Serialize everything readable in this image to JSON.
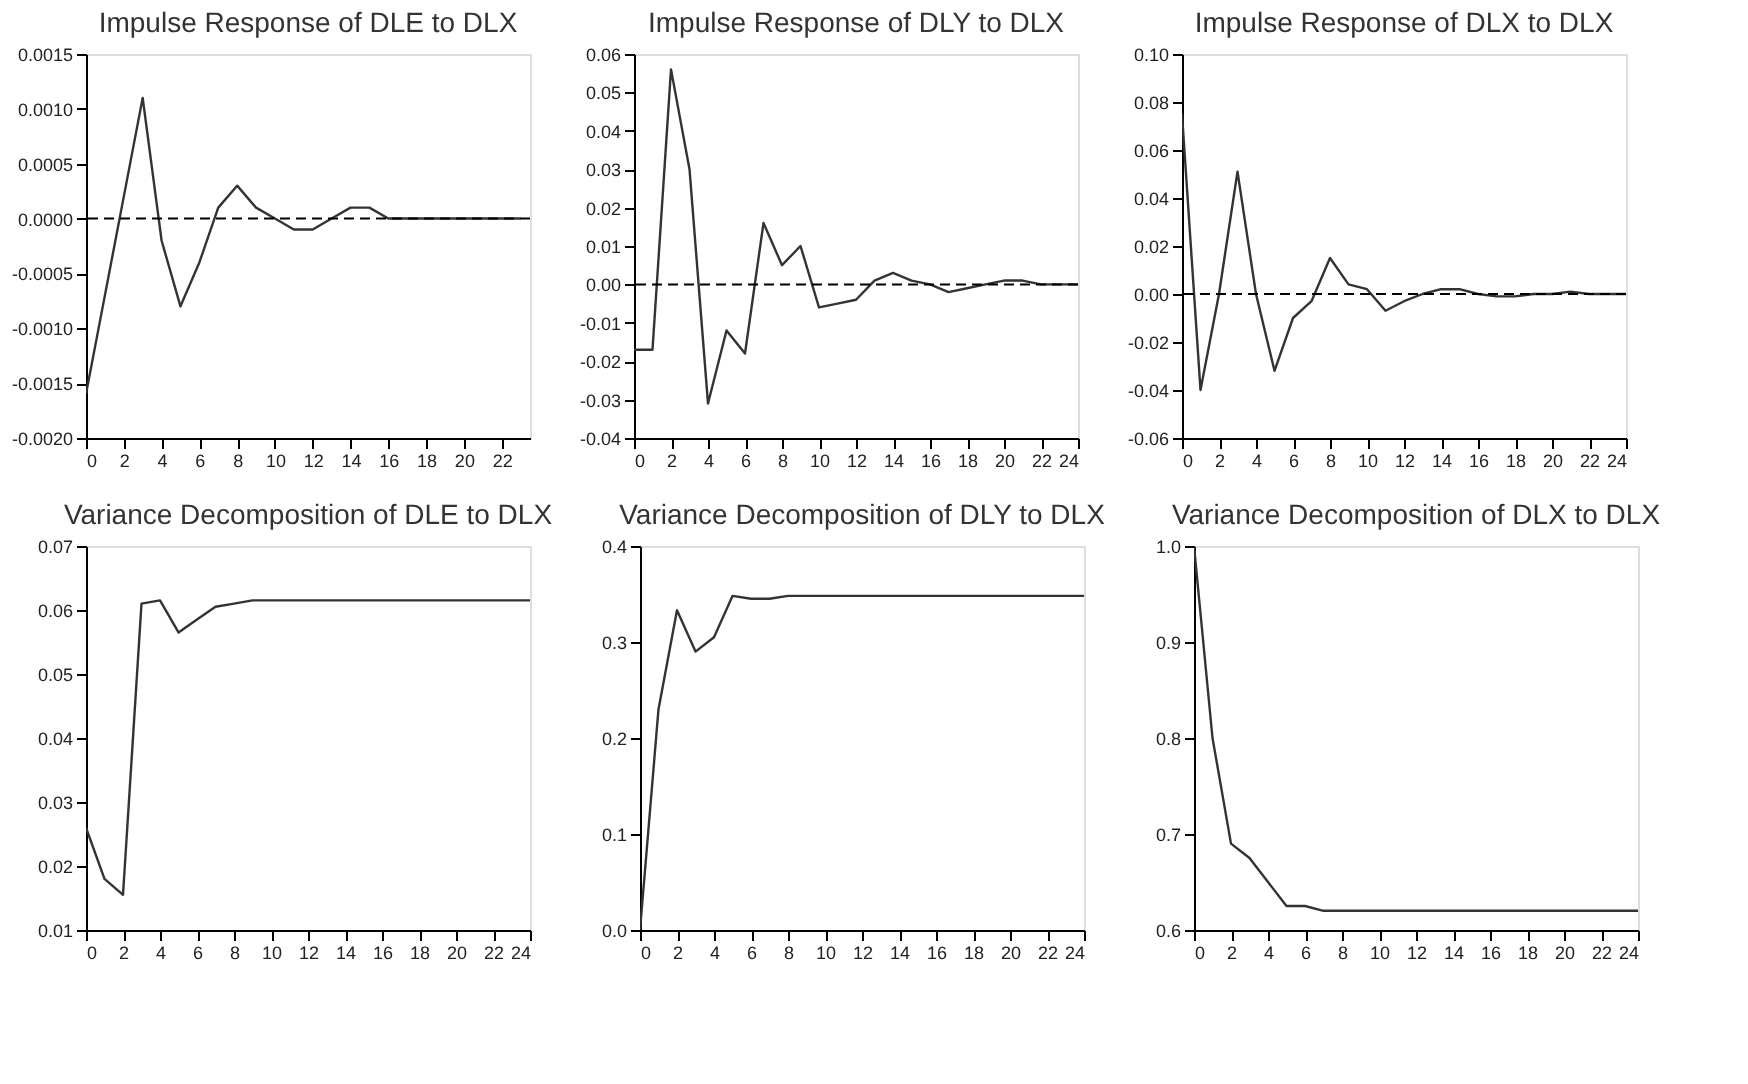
{
  "chart_data": [
    {
      "type": "line",
      "title": "Impulse Response of DLE to DLX",
      "x": [
        0,
        1,
        2,
        3,
        4,
        5,
        6,
        7,
        8,
        9,
        10,
        11,
        12,
        13,
        14,
        15,
        16,
        17,
        18,
        19,
        20,
        21,
        22,
        23
      ],
      "series": [
        {
          "color": "#333333",
          "values": [
            -0.0016,
            -0.0007,
            0.0002,
            0.0011,
            -0.0002,
            -0.0008,
            -0.0004,
            0.0001,
            0.0003,
            0.0001,
            0.0,
            -0.0001,
            -0.0001,
            0.0,
            0.0001,
            0.0001,
            0.0,
            0.0,
            0.0,
            0.0,
            0.0,
            0.0,
            0.0,
            0.0
          ]
        }
      ],
      "xlim": [
        0,
        23.5
      ],
      "xticks": [
        0,
        2,
        4,
        6,
        8,
        10,
        12,
        14,
        16,
        18,
        20,
        22
      ],
      "ylim": [
        -0.002,
        0.0015
      ],
      "yticks": [
        {
          "value": -0.002,
          "label": "-0.0020"
        },
        {
          "value": -0.0015,
          "label": "-0.0015"
        },
        {
          "value": -0.001,
          "label": "-0.0010"
        },
        {
          "value": -0.0005,
          "label": "-0.0005"
        },
        {
          "value": 0,
          "label": "0.0000"
        },
        {
          "value": 0.0005,
          "label": "0.0005"
        },
        {
          "value": 0.001,
          "label": "0.0010"
        },
        {
          "value": 0.0015,
          "label": "0.0015"
        }
      ],
      "ref_lines": [
        {
          "axis": "y",
          "value": 0,
          "line_style": "dashed"
        }
      ],
      "grid": false
    },
    {
      "type": "line",
      "title": "Impulse Response of DLY to DLX",
      "x": [
        0,
        1,
        2,
        3,
        4,
        5,
        6,
        7,
        8,
        9,
        10,
        11,
        12,
        13,
        14,
        15,
        16,
        17,
        18,
        19,
        20,
        21,
        22,
        23,
        24
      ],
      "series": [
        {
          "color": "#333333",
          "values": [
            -0.017,
            -0.017,
            0.056,
            0.03,
            -0.031,
            -0.012,
            -0.018,
            0.016,
            0.005,
            0.01,
            -0.006,
            -0.005,
            -0.004,
            0.001,
            0.003,
            0.001,
            0.0,
            -0.002,
            -0.001,
            0.0,
            0.001,
            0.001,
            0.0,
            0.0,
            0.0
          ]
        }
      ],
      "xlim": [
        0,
        24
      ],
      "xticks": [
        0,
        2,
        4,
        6,
        8,
        10,
        12,
        14,
        16,
        18,
        20,
        22,
        24
      ],
      "ylim": [
        -0.04,
        0.06
      ],
      "yticks": [
        {
          "value": -0.04,
          "label": "-0.04"
        },
        {
          "value": -0.03,
          "label": "-0.03"
        },
        {
          "value": -0.02,
          "label": "-0.02"
        },
        {
          "value": -0.01,
          "label": "-0.01"
        },
        {
          "value": 0,
          "label": "0.00"
        },
        {
          "value": 0.01,
          "label": "0.01"
        },
        {
          "value": 0.02,
          "label": "0.02"
        },
        {
          "value": 0.03,
          "label": "0.03"
        },
        {
          "value": 0.04,
          "label": "0.04"
        },
        {
          "value": 0.05,
          "label": "0.05"
        },
        {
          "value": 0.06,
          "label": "0.06"
        }
      ],
      "ref_lines": [
        {
          "axis": "y",
          "value": 0,
          "line_style": "dashed"
        }
      ],
      "grid": false
    },
    {
      "type": "line",
      "title": "Impulse Response of DLX to DLX",
      "x": [
        0,
        1,
        2,
        3,
        4,
        5,
        6,
        7,
        8,
        9,
        10,
        11,
        12,
        13,
        14,
        15,
        16,
        17,
        18,
        19,
        20,
        21,
        22,
        23,
        24
      ],
      "series": [
        {
          "color": "#333333",
          "values": [
            0.075,
            -0.04,
            0.0,
            0.051,
            0.0,
            -0.032,
            -0.01,
            -0.003,
            0.015,
            0.004,
            0.002,
            -0.007,
            -0.003,
            0.0,
            0.002,
            0.002,
            0.0,
            -0.001,
            -0.001,
            0.0,
            0.0,
            0.001,
            0.0,
            0.0,
            0.0
          ]
        }
      ],
      "xlim": [
        0,
        24
      ],
      "xticks": [
        0,
        2,
        4,
        6,
        8,
        10,
        12,
        14,
        16,
        18,
        20,
        22,
        24
      ],
      "ylim": [
        -0.06,
        0.1
      ],
      "yticks": [
        {
          "value": -0.06,
          "label": "-0.06"
        },
        {
          "value": -0.04,
          "label": "-0.04"
        },
        {
          "value": -0.02,
          "label": "-0.02"
        },
        {
          "value": 0,
          "label": "0.00"
        },
        {
          "value": 0.02,
          "label": "0.02"
        },
        {
          "value": 0.04,
          "label": "0.04"
        },
        {
          "value": 0.06,
          "label": "0.06"
        },
        {
          "value": 0.08,
          "label": "0.08"
        },
        {
          "value": 0.1,
          "label": "0.10"
        }
      ],
      "ref_lines": [
        {
          "axis": "y",
          "value": 0,
          "line_style": "dashed"
        }
      ],
      "grid": false
    },
    {
      "type": "line",
      "title": "Variance Decomposition of DLE to DLX",
      "x": [
        0,
        1,
        2,
        3,
        4,
        5,
        6,
        7,
        8,
        9,
        10,
        11,
        12,
        13,
        14,
        15,
        16,
        17,
        18,
        19,
        20,
        21,
        22,
        23,
        24
      ],
      "series": [
        {
          "color": "#333333",
          "values": [
            0.026,
            0.018,
            0.0155,
            0.061,
            0.0615,
            0.0565,
            0.0585,
            0.0605,
            0.061,
            0.0615,
            0.0615,
            0.0615,
            0.0615,
            0.0615,
            0.0615,
            0.0615,
            0.0615,
            0.0615,
            0.0615,
            0.0615,
            0.0615,
            0.0615,
            0.0615,
            0.0615,
            0.0615
          ]
        }
      ],
      "xlim": [
        0,
        24
      ],
      "xticks": [
        0,
        2,
        4,
        6,
        8,
        10,
        12,
        14,
        16,
        18,
        20,
        22,
        24
      ],
      "ylim": [
        0.01,
        0.07
      ],
      "yticks": [
        0.01,
        0.02,
        0.03,
        0.04,
        0.05,
        0.06,
        0.07
      ],
      "grid": false
    },
    {
      "type": "line",
      "title": "Variance Decomposition of DLY to DLX",
      "x": [
        0,
        1,
        2,
        3,
        4,
        5,
        6,
        7,
        8,
        9,
        10,
        11,
        12,
        13,
        14,
        15,
        16,
        17,
        18,
        19,
        20,
        21,
        22,
        23,
        24
      ],
      "series": [
        {
          "color": "#333333",
          "values": [
            0.0,
            0.23,
            0.333,
            0.29,
            0.305,
            0.348,
            0.345,
            0.345,
            0.348,
            0.348,
            0.348,
            0.348,
            0.348,
            0.348,
            0.348,
            0.348,
            0.348,
            0.348,
            0.348,
            0.348,
            0.348,
            0.348,
            0.348,
            0.348,
            0.348
          ]
        }
      ],
      "xlim": [
        0,
        24
      ],
      "xticks": [
        0,
        2,
        4,
        6,
        8,
        10,
        12,
        14,
        16,
        18,
        20,
        22,
        24
      ],
      "ylim": [
        0,
        0.4
      ],
      "yticks": [
        {
          "value": 0,
          "label": "0.0"
        },
        0.1,
        0.2,
        0.3,
        0.4
      ],
      "grid": false
    },
    {
      "type": "line",
      "title": "Variance Decomposition of DLX to DLX",
      "x": [
        0,
        1,
        2,
        3,
        4,
        5,
        6,
        7,
        8,
        9,
        10,
        11,
        12,
        13,
        14,
        15,
        16,
        17,
        18,
        19,
        20,
        21,
        22,
        23,
        24
      ],
      "series": [
        {
          "color": "#333333",
          "values": [
            1.0,
            0.8,
            0.69,
            0.675,
            0.65,
            0.625,
            0.625,
            0.62,
            0.62,
            0.62,
            0.62,
            0.62,
            0.62,
            0.62,
            0.62,
            0.62,
            0.62,
            0.62,
            0.62,
            0.62,
            0.62,
            0.62,
            0.62,
            0.62,
            0.62
          ]
        }
      ],
      "xlim": [
        0,
        24
      ],
      "xticks": [
        0,
        2,
        4,
        6,
        8,
        10,
        12,
        14,
        16,
        18,
        20,
        22,
        24
      ],
      "ylim": [
        0.6,
        1.0
      ],
      "yticks": [
        0.6,
        0.7,
        0.8,
        0.9,
        {
          "value": 1.0,
          "label": "1.0"
        }
      ],
      "grid": false
    }
  ]
}
